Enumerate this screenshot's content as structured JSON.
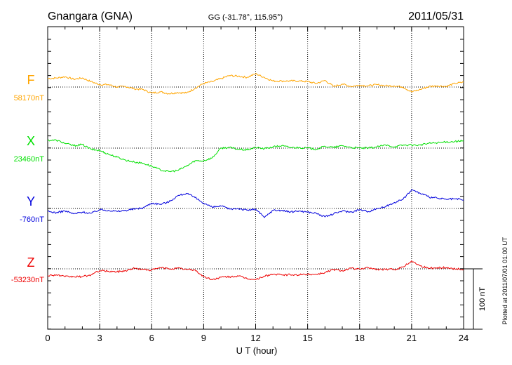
{
  "header": {
    "station": "Gnangara (GNA)",
    "coordinates": "GG (-31.78°, 115.95°)",
    "date": "2011/05/31"
  },
  "footer": {
    "plotted": "Plotted at 2011/07/01 01:00 UT"
  },
  "chart_data": {
    "type": "line",
    "title": "Gnangara (GNA)",
    "subtitle": "GG (-31.78°, 115.95°)",
    "date": "2011/05/31",
    "xlabel": "U T (hour)",
    "ylabel": "",
    "xlim": [
      0,
      24
    ],
    "x_ticks": [
      0,
      3,
      6,
      9,
      12,
      15,
      18,
      21,
      24
    ],
    "x_tick_labels": [
      "0",
      "3",
      "6",
      "9",
      "12",
      "15",
      "18",
      "21",
      "24"
    ],
    "grid": "dotted vertical lines every 3 h; dotted baseline per component",
    "scale_bar": {
      "value_nT": 100,
      "label": "100 nT"
    },
    "x": [
      0,
      0.5,
      1,
      1.5,
      2,
      2.5,
      3,
      3.5,
      4,
      4.5,
      5,
      5.5,
      6,
      6.5,
      7,
      7.5,
      8,
      8.5,
      9,
      9.5,
      10,
      10.5,
      11,
      11.5,
      12,
      12.5,
      13,
      13.5,
      14,
      14.5,
      15,
      15.5,
      16,
      16.5,
      17,
      17.5,
      18,
      18.5,
      19,
      19.5,
      20,
      20.5,
      21,
      21.5,
      22,
      22.5,
      23,
      23.5,
      24
    ],
    "series": [
      {
        "name": "F",
        "baseline_label": "58170nT",
        "baseline_nT": 58170,
        "color": "#ffa500",
        "offsets_nT": [
          14,
          15,
          17,
          13,
          15,
          9,
          4,
          4,
          0,
          1,
          -3,
          -4,
          -10,
          -8,
          -11,
          -9,
          -10,
          -2,
          6,
          9,
          14,
          19,
          18,
          16,
          22,
          16,
          10,
          10,
          10,
          10,
          9,
          6,
          11,
          1,
          5,
          1,
          3,
          2,
          4,
          2,
          2,
          0,
          -8,
          -4,
          1,
          2,
          1,
          6,
          8
        ]
      },
      {
        "name": "X",
        "baseline_label": "23460nT",
        "baseline_nT": 23460,
        "color": "#00e000",
        "offsets_nT": [
          13,
          13,
          8,
          4,
          6,
          -2,
          -4,
          -10,
          -15,
          -20,
          -23,
          -25,
          -30,
          -36,
          -39,
          -37,
          -30,
          -21,
          -21,
          -16,
          0,
          1,
          -2,
          -3,
          1,
          -1,
          2,
          4,
          1,
          1,
          0,
          -2,
          3,
          1,
          4,
          1,
          0,
          0,
          2,
          5,
          2,
          5,
          5,
          5,
          8,
          9,
          10,
          11,
          12
        ]
      },
      {
        "name": "Y",
        "baseline_label": "-760nT",
        "baseline_nT": -760,
        "color": "#0000dd",
        "offsets_nT": [
          -5,
          -7,
          -4,
          -9,
          -6,
          -8,
          -2,
          -3,
          -5,
          -3,
          -1,
          1,
          9,
          7,
          11,
          21,
          25,
          18,
          9,
          2,
          4,
          -1,
          0,
          -3,
          -1,
          -15,
          -3,
          -3,
          -6,
          -4,
          -6,
          -8,
          -14,
          -9,
          -4,
          -6,
          -2,
          -5,
          0,
          3,
          10,
          15,
          31,
          25,
          19,
          17,
          15,
          16,
          14
        ]
      },
      {
        "name": "Z",
        "baseline_label": "-53230nT",
        "baseline_nT": -53230,
        "color": "#ee0000",
        "offsets_nT": [
          -11,
          -10,
          -13,
          -13,
          -13,
          -10,
          -3,
          -4,
          -5,
          -3,
          1,
          -1,
          -2,
          2,
          0,
          1,
          -1,
          -2,
          -13,
          -18,
          -14,
          -13,
          -12,
          -16,
          -18,
          -12,
          -9,
          -10,
          -10,
          -10,
          -9,
          -9,
          -6,
          -1,
          -3,
          1,
          -1,
          2,
          -1,
          -1,
          -1,
          3,
          13,
          5,
          1,
          2,
          2,
          0,
          -1
        ]
      }
    ]
  }
}
